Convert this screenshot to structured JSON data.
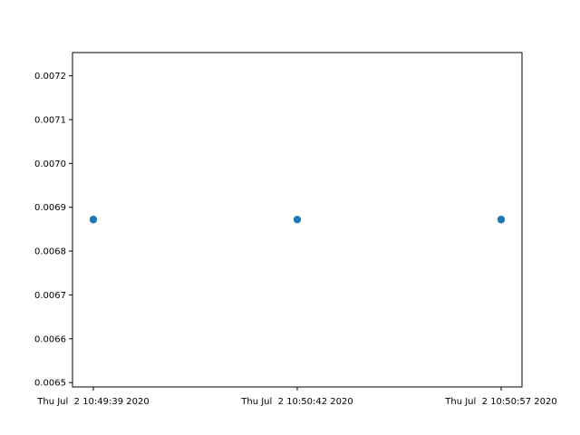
{
  "chart_data": {
    "type": "scatter",
    "title": "",
    "xlabel": "",
    "ylabel": "",
    "x": [
      "Thu Jul  2 10:49:39 2020",
      "Thu Jul  2 10:50:42 2020",
      "Thu Jul  2 10:50:57 2020"
    ],
    "series": [
      {
        "values": [
          0.006872,
          0.006872,
          0.006872
        ],
        "color": "#1f77b4"
      }
    ],
    "x_categorical_evenly_spaced": true,
    "ylim": [
      0.00649,
      0.007253
    ],
    "yticks": [
      0.0065,
      0.0066,
      0.0067,
      0.0068,
      0.0069,
      0.007,
      0.0071,
      0.0072
    ],
    "ytick_labels": [
      "0.0065",
      "0.0066",
      "0.0067",
      "0.0068",
      "0.0069",
      "0.0070",
      "0.0071",
      "0.0072"
    ],
    "grid": false,
    "legend": "none"
  }
}
